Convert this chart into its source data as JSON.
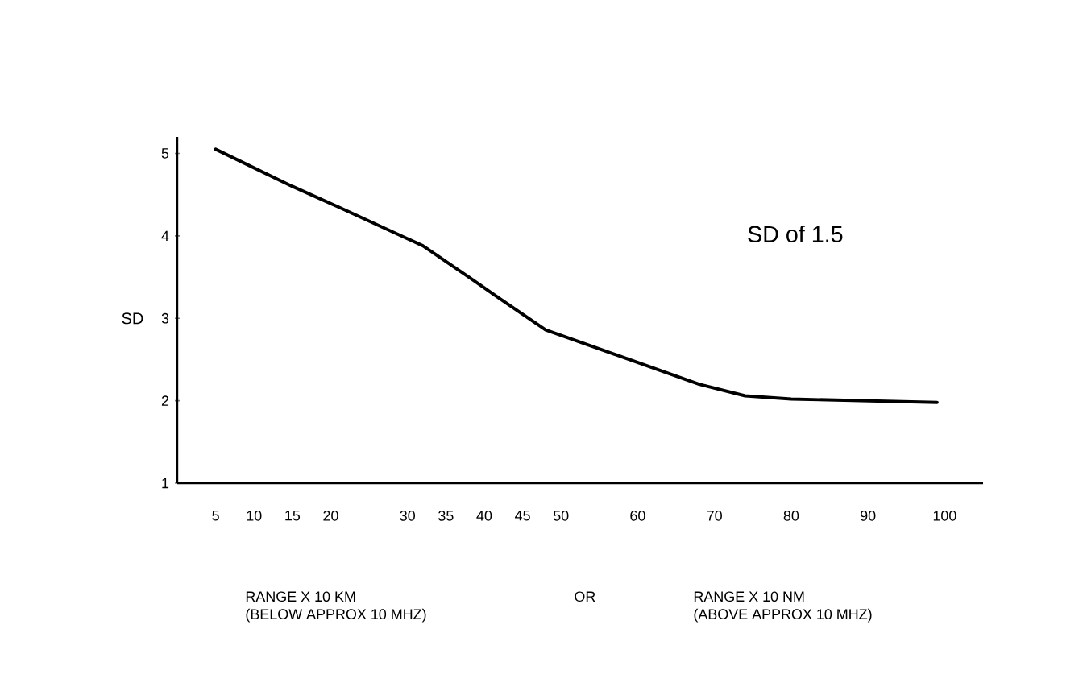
{
  "chart_data": {
    "type": "line",
    "ylabel": "SD",
    "x": [
      5,
      15,
      21,
      32,
      38,
      42,
      48,
      68,
      74,
      80,
      99
    ],
    "values": [
      5.05,
      4.6,
      4.35,
      3.88,
      3.5,
      3.24,
      2.86,
      2.2,
      2.06,
      2.02,
      1.98
    ],
    "color": "#000000",
    "marker": "none",
    "line_style": "solid",
    "grid": false,
    "xlim": [
      0,
      105
    ],
    "ylim": [
      1,
      5.2
    ],
    "xticks": [
      5,
      10,
      15,
      20,
      30,
      35,
      40,
      45,
      50,
      60,
      70,
      80,
      90,
      100
    ],
    "yticks": [
      1,
      2,
      3,
      4,
      5
    ],
    "annotations": [
      "SD of 1.5",
      "RANGE X 10 KM\n(BELOW APPROX  10 MHZ)",
      "OR",
      "RANGE X 10 NM\n(ABOVE APPROX  10 MHZ)"
    ]
  }
}
